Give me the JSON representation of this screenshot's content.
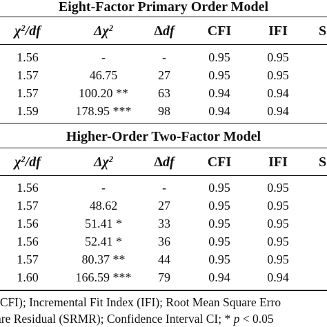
{
  "section1": {
    "title": "Eight-Factor Primary Order Model",
    "headers": {
      "chi_df": {
        "base": "χ",
        "sup": "2",
        "rest": "/df"
      },
      "delta_chi": {
        "base": "Δχ",
        "sup": "2"
      },
      "delta_df": {
        "base": "Δ",
        "var": "df"
      },
      "cfi": "CFI",
      "ifi": "IFI",
      "cut": "S"
    },
    "rows": [
      {
        "chi_df": "1.56",
        "delta_chi": "-",
        "delta_df": "-",
        "cfi": "0.95",
        "ifi": "0.95",
        "cut": ""
      },
      {
        "chi_df": "1.57",
        "delta_chi": "46.75",
        "delta_df": "27",
        "cfi": "0.95",
        "ifi": "0.95",
        "cut": ""
      },
      {
        "chi_df": "1.57",
        "delta_chi": "100.20 **",
        "delta_df": "63",
        "cfi": "0.94",
        "ifi": "0.94",
        "cut": ""
      },
      {
        "chi_df": "1.59",
        "delta_chi": "178.95 ***",
        "delta_df": "98",
        "cfi": "0.94",
        "ifi": "0.94",
        "cut": ""
      }
    ]
  },
  "section2": {
    "title": "Higher-Order Two-Factor Model",
    "headers": {
      "chi_df": {
        "base": "χ",
        "sup": "2",
        "rest": "/df"
      },
      "delta_chi": {
        "base": "Δχ",
        "sup": "2"
      },
      "delta_df": {
        "base": "Δ",
        "var": "df"
      },
      "cfi": "CFI",
      "ifi": "IFI",
      "cut": "S"
    },
    "rows": [
      {
        "chi_df": "1.56",
        "delta_chi": "-",
        "delta_df": "-",
        "cfi": "0.95",
        "ifi": "0.95",
        "cut": ""
      },
      {
        "chi_df": "1.57",
        "delta_chi": "48.62",
        "delta_df": "27",
        "cfi": "0.95",
        "ifi": "0.95",
        "cut": ""
      },
      {
        "chi_df": "1.56",
        "delta_chi": "51.41 *",
        "delta_df": "33",
        "cfi": "0.95",
        "ifi": "0.95",
        "cut": ""
      },
      {
        "chi_df": "1.56",
        "delta_chi": "52.41 *",
        "delta_df": "36",
        "cfi": "0.95",
        "ifi": "0.95",
        "cut": ""
      },
      {
        "chi_df": "1.57",
        "delta_chi": "80.37 **",
        "delta_df": "44",
        "cfi": "0.95",
        "ifi": "0.95",
        "cut": ""
      },
      {
        "chi_df": "1.60",
        "delta_chi": "166.59 ***",
        "delta_df": "79",
        "cfi": "0.94",
        "ifi": "0.94",
        "cut": ""
      }
    ]
  },
  "footnote": {
    "line1": "(CFI); Incremental Fit Index (IFI); Root Mean Square Erro",
    "line2_pre": "are Residual (SRMR); Confidence Interval CI; * ",
    "line2_var": "p",
    "line2_post": " < 0.05"
  }
}
